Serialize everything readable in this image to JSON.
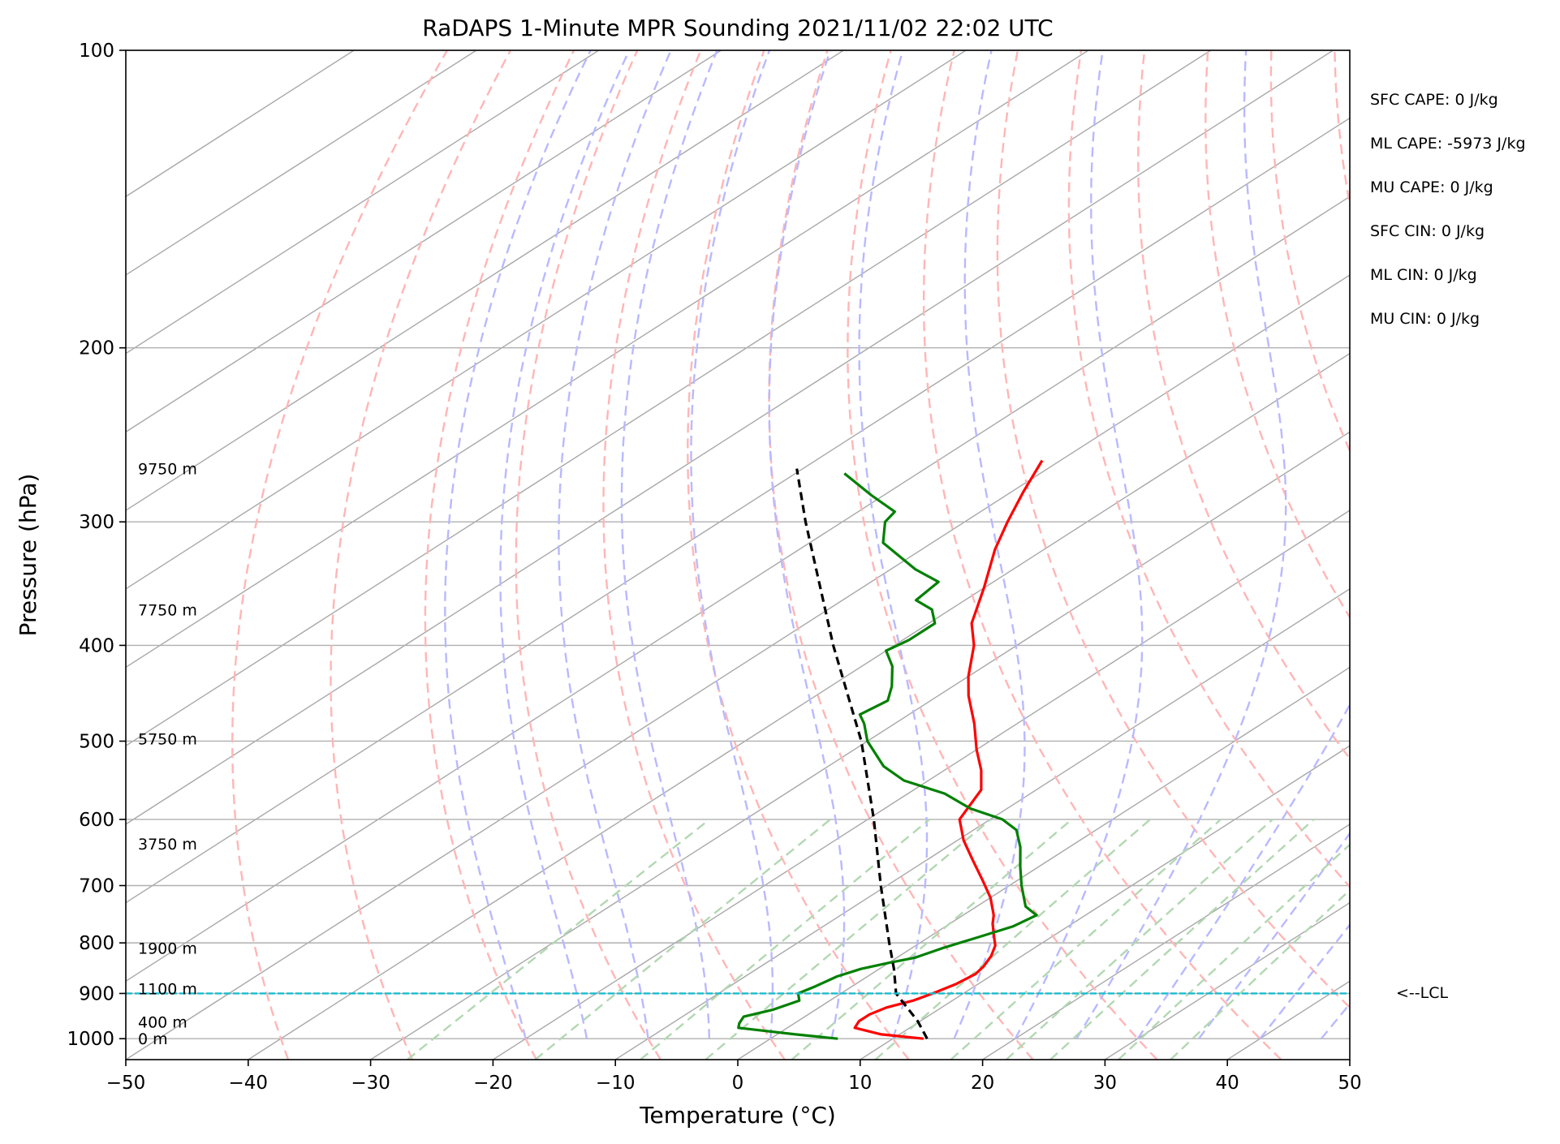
{
  "chart_data": {
    "type": "line",
    "title": "RaDAPS 1-Minute MPR Sounding 2021/11/02 22:02 UTC",
    "xlabel": "Temperature (°C)",
    "ylabel": "Pressure (hPa)",
    "xlim": [
      -50,
      50
    ],
    "ylim": [
      1050,
      100
    ],
    "yscale": "log",
    "grid": true,
    "skew": "skew-T log-P diagram",
    "x_ticks": [
      "−50",
      "−40",
      "−30",
      "−20",
      "−10",
      "0",
      "10",
      "20",
      "30",
      "40",
      "50"
    ],
    "x_tick_values": [
      -50,
      -40,
      -30,
      -20,
      -10,
      0,
      10,
      20,
      30,
      40,
      50
    ],
    "y_ticks": [
      "100",
      "200",
      "300",
      "400",
      "500",
      "600",
      "700",
      "800",
      "900",
      "1000"
    ],
    "y_tick_values": [
      100,
      200,
      300,
      400,
      500,
      600,
      700,
      800,
      900,
      1000
    ],
    "series": [
      {
        "key": "temperature",
        "color": "#ff0000",
        "points": [
          [
            1000,
            12.5
          ],
          [
            990,
            8.5
          ],
          [
            975,
            5.5
          ],
          [
            960,
            5.0
          ],
          [
            945,
            5.0
          ],
          [
            930,
            5.5
          ],
          [
            915,
            6.8
          ],
          [
            900,
            7.5
          ],
          [
            880,
            8.2
          ],
          [
            860,
            8.5
          ],
          [
            845,
            8.2
          ],
          [
            825,
            7.5
          ],
          [
            805,
            6.5
          ],
          [
            785,
            5.0
          ],
          [
            765,
            3.5
          ],
          [
            750,
            2.5
          ],
          [
            720,
            0.0
          ],
          [
            690,
            -3.0
          ],
          [
            660,
            -6.2
          ],
          [
            630,
            -9.5
          ],
          [
            600,
            -12.5
          ],
          [
            560,
            -14.5
          ],
          [
            535,
            -17.0
          ],
          [
            510,
            -20.0
          ],
          [
            480,
            -23.5
          ],
          [
            450,
            -27.5
          ],
          [
            430,
            -30.0
          ],
          [
            400,
            -33.5
          ],
          [
            380,
            -36.5
          ],
          [
            350,
            -40.0
          ],
          [
            320,
            -44.0
          ],
          [
            300,
            -46.5
          ],
          [
            280,
            -49.0
          ],
          [
            260,
            -51.5
          ]
        ]
      },
      {
        "key": "dewpoint",
        "color": "#008000",
        "points": [
          [
            1000,
            5.5
          ],
          [
            990,
            1.5
          ],
          [
            975,
            -4.0
          ],
          [
            965,
            -4.5
          ],
          [
            950,
            -5.0
          ],
          [
            935,
            -3.5
          ],
          [
            915,
            -2.5
          ],
          [
            900,
            -3.5
          ],
          [
            885,
            -3.0
          ],
          [
            865,
            -2.5
          ],
          [
            850,
            -1.5
          ],
          [
            838,
            0.0
          ],
          [
            828,
            1.5
          ],
          [
            810,
            2.5
          ],
          [
            790,
            4.0
          ],
          [
            770,
            5.5
          ],
          [
            750,
            6.0
          ],
          [
            735,
            4.0
          ],
          [
            700,
            1.0
          ],
          [
            670,
            -1.5
          ],
          [
            640,
            -4.0
          ],
          [
            615,
            -6.5
          ],
          [
            600,
            -9.0
          ],
          [
            585,
            -13.0
          ],
          [
            565,
            -17.0
          ],
          [
            548,
            -22.0
          ],
          [
            530,
            -25.5
          ],
          [
            500,
            -30.0
          ],
          [
            480,
            -32.5
          ],
          [
            470,
            -34.0
          ],
          [
            455,
            -33.5
          ],
          [
            440,
            -35.0
          ],
          [
            420,
            -37.5
          ],
          [
            405,
            -40.0
          ],
          [
            395,
            -39.5
          ],
          [
            380,
            -39.5
          ],
          [
            368,
            -41.5
          ],
          [
            360,
            -44.0
          ],
          [
            345,
            -44.5
          ],
          [
            335,
            -48.0
          ],
          [
            315,
            -54.0
          ],
          [
            300,
            -56.5
          ],
          [
            293,
            -57.0
          ],
          [
            282,
            -61.0
          ],
          [
            268,
            -66.0
          ]
        ]
      },
      {
        "key": "parcel",
        "color": "#000000",
        "dashed": true,
        "points": [
          [
            1000,
            12.8
          ],
          [
            960,
            9.8
          ],
          [
            900,
            4.5
          ],
          [
            850,
            1.2
          ],
          [
            800,
            -2.5
          ],
          [
            700,
            -10.5
          ],
          [
            600,
            -19.5
          ],
          [
            500,
            -30.5
          ],
          [
            400,
            -45.0
          ],
          [
            300,
            -63.0
          ],
          [
            265,
            -70.5
          ]
        ]
      }
    ],
    "dry_adiabats_theta_C": [
      -40,
      -30,
      -20,
      -10,
      0,
      10,
      20,
      30,
      40,
      50,
      60,
      70,
      80,
      90,
      100,
      110,
      120,
      130,
      140,
      150,
      160,
      170,
      180
    ],
    "moist_adiabats_start_C": [
      -20,
      -15,
      -10,
      -5,
      0,
      5,
      10,
      15,
      20,
      25,
      30,
      35,
      40,
      45
    ],
    "mixing_ratio_lines_gkg": [
      0.4,
      1,
      2,
      3,
      5,
      8,
      12,
      16,
      20,
      28,
      36
    ],
    "lcl_pressure": 900,
    "height_labels": [
      {
        "p": 265,
        "text": "9750 m"
      },
      {
        "p": 368,
        "text": "7750 m"
      },
      {
        "p": 497,
        "text": "5750 m"
      },
      {
        "p": 635,
        "text": "3750 m"
      },
      {
        "p": 810,
        "text": "1900 m"
      },
      {
        "p": 890,
        "text": "1100 m"
      },
      {
        "p": 962,
        "text": "400 m"
      },
      {
        "p": 1000,
        "text": "0 m"
      }
    ],
    "indices": [
      "SFC CAPE: 0 J/kg",
      "ML CAPE: -5973 J/kg",
      "MU CAPE: 0 J/kg",
      "SFC CIN: 0 J/kg",
      "ML CIN: 0 J/kg",
      "MU CIN: 0 J/kg"
    ],
    "lcl_label": "<--LCL",
    "colors": {
      "grid": "#b0b0b0",
      "isotherm": "#a8a8a8",
      "dry_adiabat": "#ffb6b6",
      "moist_adiabat": "#b9b9ff",
      "mixing_ratio": "#b2d8b2",
      "lcl_line": "#17becf"
    }
  }
}
